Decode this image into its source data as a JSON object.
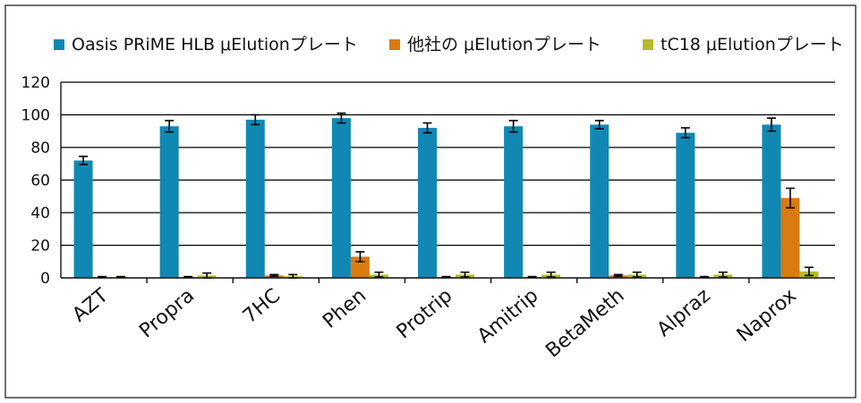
{
  "chart_data": {
    "type": "bar",
    "title": "",
    "xlabel": "",
    "ylabel": "",
    "ylim": [
      0,
      120
    ],
    "yticks": [
      0,
      20,
      40,
      60,
      80,
      100,
      120
    ],
    "grid": true,
    "legend_position": "top",
    "categories": [
      "AZT",
      "Propra",
      "7HC",
      "Phen",
      "Protrip",
      "Amitrip",
      "BetaMeth",
      "Alpraz",
      "Naprox"
    ],
    "series": [
      {
        "name": "Oasis PRiME HLB μElutionプレート",
        "color": "#1088b3",
        "values": [
          72,
          93,
          97,
          98,
          92,
          93,
          94,
          89,
          94
        ],
        "errors": [
          2.5,
          3.5,
          3,
          3,
          3,
          3.5,
          2.5,
          3,
          4
        ]
      },
      {
        "name": "他社の μElutionプレート",
        "color": "#d97b10",
        "values": [
          0.5,
          0.5,
          1.5,
          13,
          0.5,
          0.5,
          1.5,
          0.5,
          49
        ],
        "errors": [
          0.3,
          0.3,
          0.5,
          3,
          0.3,
          0.3,
          0.5,
          0.3,
          6
        ]
      },
      {
        "name": "tC18 μElutionプレート",
        "color": "#b5bb29",
        "values": [
          0.5,
          1.5,
          1,
          2,
          2,
          2,
          2,
          2,
          4
        ],
        "errors": [
          0.3,
          1.5,
          1,
          1.5,
          1.5,
          1.5,
          1.5,
          1.5,
          2.5
        ]
      }
    ]
  }
}
